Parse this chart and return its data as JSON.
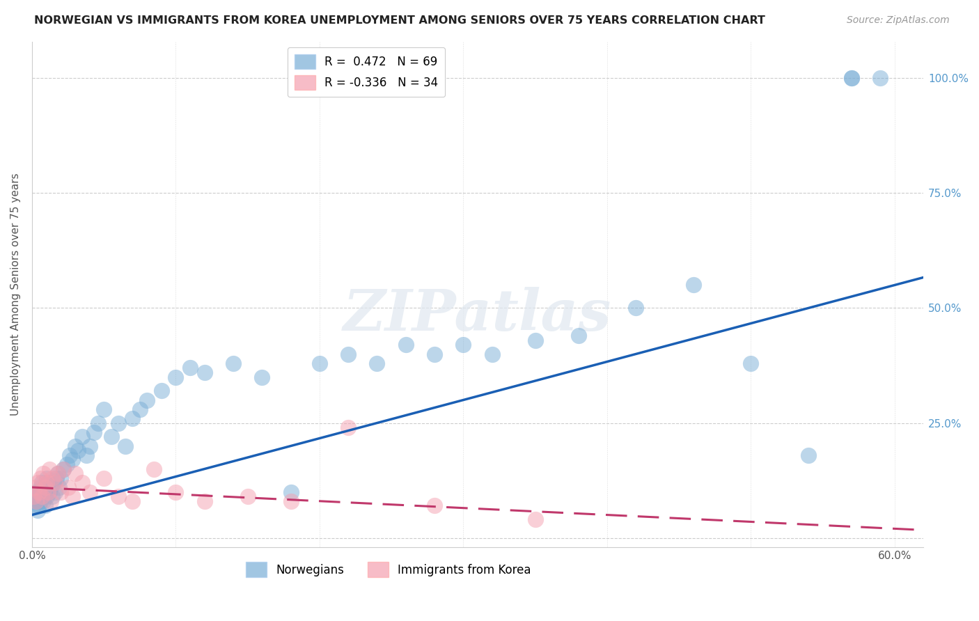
{
  "title": "NORWEGIAN VS IMMIGRANTS FROM KOREA UNEMPLOYMENT AMONG SENIORS OVER 75 YEARS CORRELATION CHART",
  "source": "Source: ZipAtlas.com",
  "ylabel": "Unemployment Among Seniors over 75 years",
  "xlim": [
    0.0,
    0.62
  ],
  "ylim": [
    -0.02,
    1.08
  ],
  "xticks": [
    0.0,
    0.1,
    0.2,
    0.3,
    0.4,
    0.5,
    0.6
  ],
  "xticklabels": [
    "0.0%",
    "",
    "",
    "",
    "",
    "",
    "60.0%"
  ],
  "yticks": [
    0.0,
    0.25,
    0.5,
    0.75,
    1.0
  ],
  "yticklabels_right": [
    "",
    "25.0%",
    "50.0%",
    "75.0%",
    "100.0%"
  ],
  "norwegian_color": "#7aaed6",
  "korean_color": "#f4a0b0",
  "norwegian_line_color": "#1a5fb4",
  "korean_line_color": "#c0386b",
  "watermark": "ZIPatlas",
  "legend_R_norwegian": "R =  0.472",
  "legend_N_norwegian": "N = 69",
  "legend_R_korean": "R = -0.336",
  "legend_N_korean": "N = 34",
  "norwegian_x": [
    0.001,
    0.002,
    0.003,
    0.003,
    0.004,
    0.004,
    0.005,
    0.005,
    0.006,
    0.006,
    0.007,
    0.007,
    0.008,
    0.008,
    0.009,
    0.009,
    0.01,
    0.01,
    0.011,
    0.012,
    0.013,
    0.014,
    0.015,
    0.016,
    0.017,
    0.018,
    0.019,
    0.02,
    0.022,
    0.024,
    0.026,
    0.028,
    0.03,
    0.032,
    0.035,
    0.038,
    0.04,
    0.043,
    0.046,
    0.05,
    0.055,
    0.06,
    0.065,
    0.07,
    0.075,
    0.08,
    0.09,
    0.1,
    0.11,
    0.12,
    0.14,
    0.16,
    0.18,
    0.2,
    0.22,
    0.24,
    0.26,
    0.28,
    0.3,
    0.32,
    0.35,
    0.38,
    0.42,
    0.46,
    0.5,
    0.54,
    0.57,
    0.57,
    0.59
  ],
  "norwegian_y": [
    0.07,
    0.08,
    0.09,
    0.1,
    0.06,
    0.08,
    0.07,
    0.1,
    0.08,
    0.11,
    0.09,
    0.12,
    0.08,
    0.1,
    0.07,
    0.11,
    0.09,
    0.13,
    0.12,
    0.1,
    0.11,
    0.09,
    0.12,
    0.1,
    0.13,
    0.14,
    0.11,
    0.13,
    0.15,
    0.16,
    0.18,
    0.17,
    0.2,
    0.19,
    0.22,
    0.18,
    0.2,
    0.23,
    0.25,
    0.28,
    0.22,
    0.25,
    0.2,
    0.26,
    0.28,
    0.3,
    0.32,
    0.35,
    0.37,
    0.36,
    0.38,
    0.35,
    0.1,
    0.38,
    0.4,
    0.38,
    0.42,
    0.4,
    0.42,
    0.4,
    0.43,
    0.44,
    0.5,
    0.55,
    0.38,
    0.18,
    1.0,
    1.0,
    1.0
  ],
  "korean_x": [
    0.001,
    0.002,
    0.003,
    0.004,
    0.005,
    0.006,
    0.007,
    0.008,
    0.009,
    0.01,
    0.011,
    0.012,
    0.013,
    0.014,
    0.016,
    0.018,
    0.02,
    0.022,
    0.025,
    0.028,
    0.03,
    0.035,
    0.04,
    0.05,
    0.06,
    0.07,
    0.085,
    0.1,
    0.12,
    0.15,
    0.18,
    0.22,
    0.28,
    0.35
  ],
  "korean_y": [
    0.09,
    0.11,
    0.08,
    0.12,
    0.1,
    0.13,
    0.09,
    0.14,
    0.11,
    0.12,
    0.1,
    0.15,
    0.08,
    0.13,
    0.12,
    0.14,
    0.1,
    0.15,
    0.11,
    0.09,
    0.14,
    0.12,
    0.1,
    0.13,
    0.09,
    0.08,
    0.15,
    0.1,
    0.08,
    0.09,
    0.08,
    0.24,
    0.07,
    0.04
  ]
}
